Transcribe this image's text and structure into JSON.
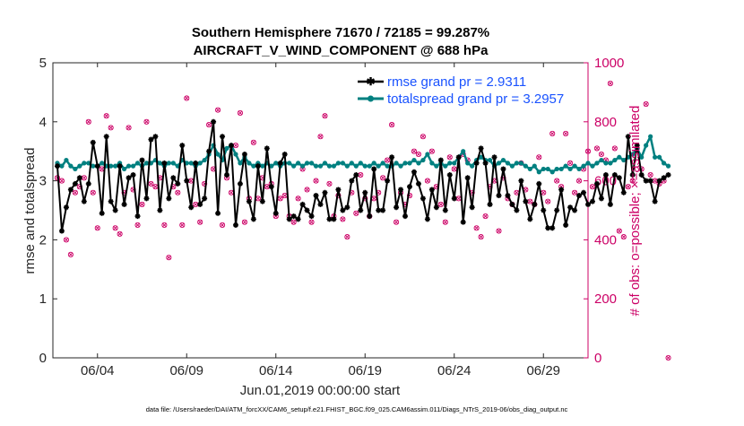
{
  "chart_data": {
    "type": "line",
    "title_line1": "Southern Hemisphere 71670 / 72185 = 99.287%",
    "title_line2": "AIRCRAFT_V_WIND_COMPONENT @ 688 hPa",
    "ylabel_left": "rmse and totalspread",
    "ylabel_right": "# of obs: o=possible; ×=assimilated",
    "xlabel": "Jun.01,2019 00:00:00 start",
    "footnote": "data file: /Users/raeder/DAI/ATM_forcXX/CAM6_setup/f.e21.FHIST_BGC.f09_025.CAM6assim.011/Diags_NTrS_2019-06/obs_diag_output.nc",
    "xlim": [
      1.5,
      31.5
    ],
    "ylim_left": [
      0,
      5
    ],
    "ylim_right": [
      0,
      1000
    ],
    "x_ticks": [
      {
        "x": 4,
        "label": "06/04"
      },
      {
        "x": 9,
        "label": "06/09"
      },
      {
        "x": 14,
        "label": "06/14"
      },
      {
        "x": 19,
        "label": "06/19"
      },
      {
        "x": 24,
        "label": "06/24"
      },
      {
        "x": 29,
        "label": "06/29"
      }
    ],
    "y_ticks_left": [
      "0",
      "1",
      "2",
      "3",
      "4",
      "5"
    ],
    "y_ticks_right": [
      "0",
      "200",
      "400",
      "600",
      "800",
      "1000"
    ],
    "colors": {
      "rmse": "#000000",
      "spread": "#008080",
      "obs": "#cc0066",
      "legend_text": "#1a53ff"
    },
    "series": [
      {
        "name": "rmse grand pr = 2.9311",
        "values": [
          3.25,
          2.15,
          2.55,
          2.85,
          2.95,
          3.05,
          2.65,
          2.95,
          3.65,
          3.25,
          2.45,
          3.75,
          2.65,
          2.5,
          3.25,
          2.6,
          3.05,
          3.1,
          2.4,
          3.35,
          2.7,
          3.7,
          3.75,
          2.5,
          3.3,
          2.7,
          3.05,
          2.95,
          3.6,
          3.0,
          2.55,
          3.3,
          2.6,
          2.7,
          3.5,
          4.0,
          2.45,
          3.75,
          3.1,
          3.6,
          2.25,
          2.95,
          3.45,
          2.65,
          2.35,
          3.25,
          2.65,
          3.55,
          2.9,
          2.45,
          3.3,
          3.45,
          2.35,
          2.4,
          2.35,
          2.6,
          2.5,
          2.4,
          2.75,
          2.6,
          2.8,
          2.35,
          2.35,
          2.85,
          2.5,
          2.55,
          3.0,
          3.1,
          2.5,
          2.8,
          2.4,
          3.2,
          2.5,
          2.5,
          3.0,
          3.4,
          2.55,
          2.85,
          2.4,
          2.9,
          3.15,
          2.95,
          2.7,
          2.35,
          2.85,
          2.55,
          3.35,
          2.5,
          3.1,
          2.7,
          3.4,
          2.3,
          3.05,
          2.55,
          3.3,
          3.55,
          3.3,
          2.6,
          3.4,
          2.75,
          3.2,
          2.75,
          2.6,
          2.5,
          3.0,
          2.65,
          2.35,
          2.6,
          2.95,
          2.5,
          2.2,
          2.2,
          2.5,
          2.85,
          2.25,
          2.55,
          2.5,
          2.75,
          2.8,
          2.6,
          2.65,
          2.95,
          2.7,
          3.1,
          2.6,
          3.1,
          3.05,
          2.8,
          3.75,
          3.1,
          3.6,
          3.1,
          3.0,
          3.0,
          2.65,
          3.0,
          3.05,
          3.1
        ]
      },
      {
        "name": "totalspread grand pr = 3.2957",
        "values": [
          3.3,
          3.25,
          3.35,
          3.25,
          3.2,
          3.25,
          3.3,
          3.3,
          3.25,
          3.25,
          3.3,
          3.25,
          3.25,
          3.25,
          3.3,
          3.2,
          3.25,
          3.25,
          3.3,
          3.25,
          3.3,
          3.3,
          3.35,
          3.3,
          3.25,
          3.3,
          3.3,
          3.25,
          3.35,
          3.3,
          3.3,
          3.25,
          3.3,
          3.35,
          3.45,
          3.6,
          3.45,
          3.35,
          3.55,
          3.6,
          3.45,
          3.3,
          3.4,
          3.3,
          3.25,
          3.3,
          3.25,
          3.3,
          3.25,
          3.3,
          3.25,
          3.3,
          3.3,
          3.25,
          3.3,
          3.25,
          3.3,
          3.3,
          3.25,
          3.25,
          3.3,
          3.25,
          3.25,
          3.3,
          3.3,
          3.25,
          3.3,
          3.25,
          3.3,
          3.25,
          3.25,
          3.3,
          3.25,
          3.3,
          3.25,
          3.25,
          3.3,
          3.25,
          3.3,
          3.3,
          3.35,
          3.3,
          3.35,
          3.45,
          3.3,
          3.25,
          3.3,
          3.25,
          3.3,
          3.3,
          3.4,
          3.5,
          3.3,
          3.25,
          3.35,
          3.4,
          3.35,
          3.35,
          3.25,
          3.3,
          3.35,
          3.3,
          3.25,
          3.3,
          3.3,
          3.25,
          3.2,
          3.25,
          3.15,
          3.2,
          3.2,
          3.15,
          3.2,
          3.2,
          3.25,
          3.2,
          3.25,
          3.2,
          3.25,
          3.3,
          3.25,
          3.3,
          3.35,
          3.3,
          3.3,
          3.35,
          3.4,
          3.35,
          3.4,
          3.45,
          3.55,
          3.4,
          3.6,
          3.75,
          3.4,
          3.4,
          3.3,
          3.25
        ]
      }
    ],
    "obs_counts": [
      610,
      600,
      400,
      350,
      560,
      580,
      610,
      800,
      560,
      440,
      640,
      820,
      780,
      440,
      420,
      560,
      780,
      570,
      450,
      520,
      800,
      590,
      580,
      610,
      450,
      340,
      580,
      560,
      450,
      880,
      600,
      520,
      460,
      590,
      790,
      640,
      840,
      450,
      610,
      560,
      720,
      830,
      460,
      540,
      730,
      540,
      610,
      580,
      590,
      480,
      540,
      550,
      480,
      460,
      540,
      640,
      570,
      460,
      600,
      750,
      820,
      590,
      480,
      550,
      470,
      410,
      560,
      490,
      620,
      540,
      480,
      540,
      560,
      610,
      670,
      790,
      460,
      560,
      520,
      550,
      700,
      690,
      750,
      600,
      700,
      580,
      520,
      460,
      680,
      640,
      540,
      690,
      670,
      560,
      440,
      410,
      480,
      580,
      600,
      430,
      610,
      540,
      520,
      560,
      660,
      570,
      530,
      520,
      680,
      560,
      530,
      760,
      600,
      580,
      760,
      660,
      560,
      600,
      640,
      700,
      580,
      710,
      690,
      670,
      930,
      710,
      430,
      410,
      580,
      600,
      710,
      640,
      860,
      620,
      600,
      590,
      600,
      0
    ]
  }
}
